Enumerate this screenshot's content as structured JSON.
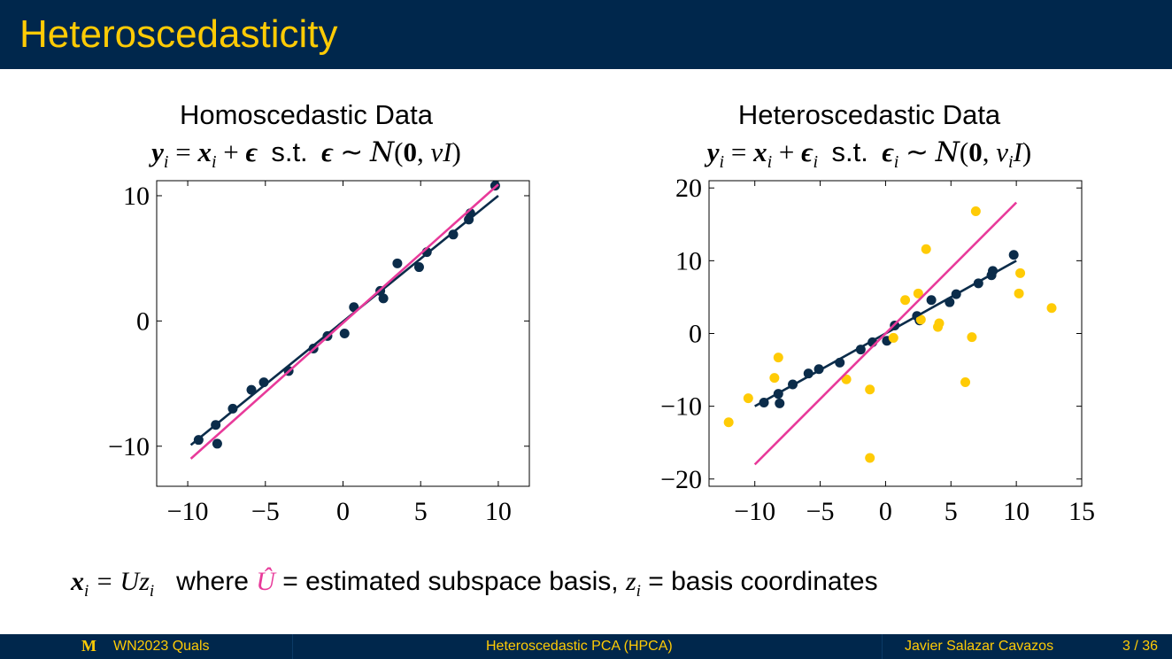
{
  "slide": {
    "title": "Heteroscedasticity"
  },
  "charts": {
    "left": {
      "heading": "Homoscedastic Data",
      "eqn_st": "s.t."
    },
    "right": {
      "heading": "Heteroscedastic Data",
      "eqn_st": "s.t."
    }
  },
  "caption": {
    "lhs": "x",
    "lhs_sub": "i",
    "eq": " = ",
    "rhs": "Uz",
    "rhs_sub": "i",
    "where": "where",
    "uhat": "Û",
    "text1": " = estimated subspace basis, ",
    "z": "z",
    "z_sub": "i",
    "text2": " = basis coordinates"
  },
  "footer": {
    "logo": "M",
    "course": "WN2023 Quals",
    "talk": "Heteroscedastic PCA (HPCA)",
    "author": "Javier Salazar Cavazos",
    "page": "3 / 36"
  },
  "colors": {
    "navy": "#00274c",
    "maize": "#ffcb05",
    "pink": "#e83a9a",
    "dark_series": "#0b2c4a"
  },
  "chart_data": [
    {
      "type": "scatter",
      "title": "Homoscedastic Data",
      "xlim": [
        -12,
        12
      ],
      "ylim": [
        -13.2,
        11.2
      ],
      "xticks": [
        -10,
        -5,
        0,
        5,
        10
      ],
      "yticks": [
        -10,
        0,
        10
      ],
      "xtick_labels": [
        "−10",
        "−5",
        "0",
        "5",
        "10"
      ],
      "ytick_labels": [
        "−10",
        "0",
        "10"
      ],
      "grid": false,
      "series": [
        {
          "kind": "points",
          "color": "#0b2c4a",
          "x": [
            -9.3,
            -8.2,
            -8.1,
            -7.1,
            -5.9,
            -5.1,
            -3.5,
            -1.9,
            -1.0,
            0.1,
            0.7,
            2.4,
            2.6,
            3.5,
            4.9,
            5.4,
            7.1,
            8.1,
            8.2,
            9.8
          ],
          "y": [
            -9.5,
            -8.3,
            -9.8,
            -7.0,
            -5.5,
            -4.9,
            -4.0,
            -2.2,
            -1.2,
            -1.0,
            1.1,
            2.4,
            1.8,
            4.6,
            4.3,
            5.5,
            6.9,
            8.1,
            8.6,
            10.8
          ]
        },
        {
          "kind": "line",
          "color": "#0b2c4a",
          "x": [
            -9.8,
            10.0
          ],
          "y": [
            -9.9,
            10.0
          ]
        },
        {
          "kind": "line",
          "color": "#e83a9a",
          "x": [
            -9.8,
            10.0
          ],
          "y": [
            -11.0,
            10.9
          ]
        }
      ]
    },
    {
      "type": "scatter",
      "title": "Heteroscedastic Data",
      "xlim": [
        -13.5,
        15
      ],
      "ylim": [
        -21,
        21
      ],
      "xticks": [
        -10,
        -5,
        0,
        5,
        10,
        15
      ],
      "yticks": [
        -20,
        -10,
        0,
        10,
        20
      ],
      "xtick_labels": [
        "−10",
        "−5",
        "0",
        "5",
        "10",
        "15"
      ],
      "ytick_labels": [
        "−20",
        "−10",
        "0",
        "10",
        "20"
      ],
      "grid": false,
      "series": [
        {
          "kind": "points",
          "color": "#0b2c4a",
          "x": [
            -9.3,
            -8.2,
            -8.1,
            -7.1,
            -5.9,
            -5.1,
            -3.5,
            -1.9,
            -1.0,
            0.1,
            0.7,
            2.4,
            2.6,
            3.5,
            4.9,
            5.4,
            7.1,
            8.1,
            8.2,
            9.8
          ],
          "y": [
            -9.5,
            -8.3,
            -9.6,
            -7.0,
            -5.5,
            -4.9,
            -4.0,
            -2.2,
            -1.2,
            -1.0,
            1.1,
            2.4,
            1.8,
            4.6,
            4.3,
            5.4,
            6.9,
            8.0,
            8.6,
            10.8
          ]
        },
        {
          "kind": "points",
          "color": "#ffcb05",
          "x": [
            -12.0,
            -10.5,
            -8.5,
            -8.2,
            -3.0,
            -1.2,
            -1.2,
            0.6,
            1.5,
            2.5,
            2.7,
            3.1,
            4.0,
            4.1,
            6.1,
            6.6,
            6.9,
            10.2,
            10.3,
            12.7
          ],
          "y": [
            -12.2,
            -8.9,
            -6.1,
            -3.3,
            -6.3,
            -7.7,
            -17.1,
            -0.6,
            4.6,
            5.5,
            1.9,
            11.6,
            0.9,
            1.4,
            -6.7,
            -0.5,
            16.8,
            5.5,
            8.3,
            3.5
          ]
        },
        {
          "kind": "line",
          "color": "#0b2c4a",
          "x": [
            -10.0,
            10.0
          ],
          "y": [
            -10.0,
            10.0
          ]
        },
        {
          "kind": "line",
          "color": "#e83a9a",
          "x": [
            -10.0,
            10.0
          ],
          "y": [
            -18.0,
            18.0
          ]
        }
      ]
    }
  ]
}
